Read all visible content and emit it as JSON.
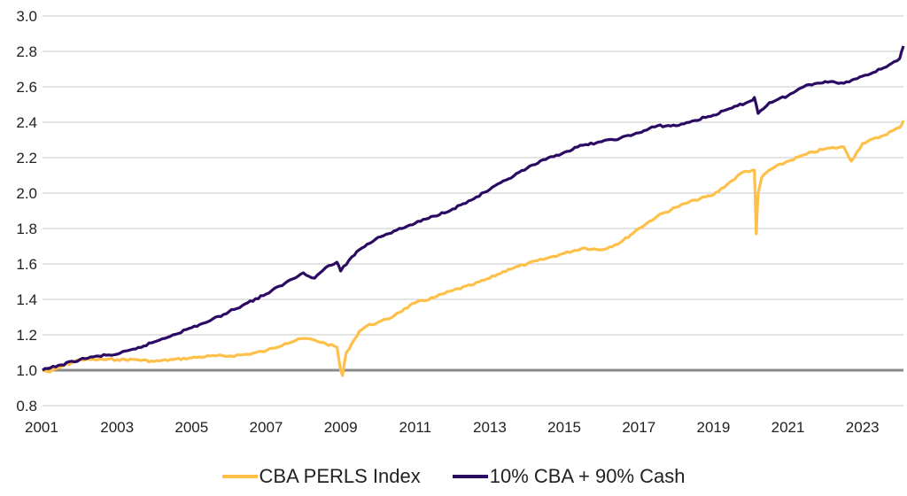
{
  "chart_data": {
    "type": "line",
    "title": "",
    "xlabel": "",
    "ylabel": "",
    "xlim": [
      2001,
      2024.1
    ],
    "ylim": [
      0.8,
      3.0
    ],
    "x_ticks": [
      "2001",
      "2003",
      "2005",
      "2007",
      "2009",
      "2011",
      "2013",
      "2015",
      "2017",
      "2019",
      "2021",
      "2023"
    ],
    "y_ticks": [
      "0.8",
      "1.0",
      "1.2",
      "1.4",
      "1.6",
      "1.8",
      "2.0",
      "2.2",
      "2.4",
      "2.6",
      "2.8",
      "3.0"
    ],
    "grid": "horizontal",
    "baseline": 1.0,
    "legend_position": "bottom",
    "series": [
      {
        "name": "CBA PERLS Index",
        "color": "#FFC04A",
        "x": [
          2001.0,
          2001.2,
          2001.5,
          2002.0,
          2002.5,
          2003.0,
          2003.5,
          2004.0,
          2004.5,
          2005.0,
          2005.5,
          2006.0,
          2006.5,
          2007.0,
          2007.5,
          2008.0,
          2008.3,
          2008.6,
          2008.9,
          2009.0,
          2009.05,
          2009.15,
          2009.3,
          2009.5,
          2009.7,
          2010.0,
          2010.3,
          2010.5,
          2011.0,
          2011.5,
          2012.0,
          2012.5,
          2013.0,
          2013.5,
          2014.0,
          2014.5,
          2015.0,
          2015.5,
          2016.0,
          2016.5,
          2017.0,
          2017.5,
          2018.0,
          2018.5,
          2019.0,
          2019.5,
          2019.8,
          2020.1,
          2020.15,
          2020.2,
          2020.3,
          2020.5,
          2021.0,
          2021.5,
          2022.0,
          2022.5,
          2022.7,
          2023.0,
          2023.5,
          2024.0,
          2024.1
        ],
        "values": [
          1.0,
          0.99,
          1.02,
          1.06,
          1.06,
          1.06,
          1.06,
          1.05,
          1.06,
          1.07,
          1.08,
          1.08,
          1.09,
          1.11,
          1.15,
          1.18,
          1.17,
          1.15,
          1.13,
          1.0,
          0.97,
          1.1,
          1.15,
          1.22,
          1.25,
          1.27,
          1.29,
          1.32,
          1.38,
          1.41,
          1.45,
          1.48,
          1.52,
          1.57,
          1.6,
          1.63,
          1.66,
          1.69,
          1.68,
          1.72,
          1.8,
          1.87,
          1.92,
          1.96,
          1.99,
          2.07,
          2.12,
          2.13,
          1.77,
          2.0,
          2.09,
          2.13,
          2.18,
          2.22,
          2.25,
          2.26,
          2.18,
          2.28,
          2.32,
          2.37,
          2.41
        ]
      },
      {
        "name": "10% CBA + 90% Cash",
        "color": "#2B0A64",
        "x": [
          2001.0,
          2001.5,
          2002.0,
          2002.5,
          2003.0,
          2003.5,
          2004.0,
          2004.5,
          2005.0,
          2005.5,
          2006.0,
          2006.5,
          2007.0,
          2007.5,
          2008.0,
          2008.3,
          2008.6,
          2008.9,
          2009.0,
          2009.3,
          2009.5,
          2010.0,
          2010.5,
          2011.0,
          2011.5,
          2012.0,
          2012.5,
          2013.0,
          2013.5,
          2014.0,
          2014.5,
          2015.0,
          2015.5,
          2016.0,
          2016.5,
          2017.0,
          2017.5,
          2018.0,
          2018.5,
          2019.0,
          2019.5,
          2020.0,
          2020.1,
          2020.2,
          2020.5,
          2021.0,
          2021.5,
          2022.0,
          2022.5,
          2023.0,
          2023.5,
          2024.0,
          2024.1
        ],
        "values": [
          1.0,
          1.03,
          1.06,
          1.08,
          1.09,
          1.12,
          1.16,
          1.2,
          1.24,
          1.28,
          1.33,
          1.38,
          1.43,
          1.49,
          1.55,
          1.52,
          1.58,
          1.61,
          1.56,
          1.64,
          1.68,
          1.75,
          1.79,
          1.83,
          1.87,
          1.91,
          1.96,
          2.02,
          2.08,
          2.14,
          2.19,
          2.23,
          2.27,
          2.29,
          2.31,
          2.34,
          2.38,
          2.38,
          2.41,
          2.44,
          2.48,
          2.52,
          2.54,
          2.45,
          2.51,
          2.55,
          2.61,
          2.63,
          2.62,
          2.66,
          2.7,
          2.76,
          2.83
        ]
      }
    ]
  }
}
